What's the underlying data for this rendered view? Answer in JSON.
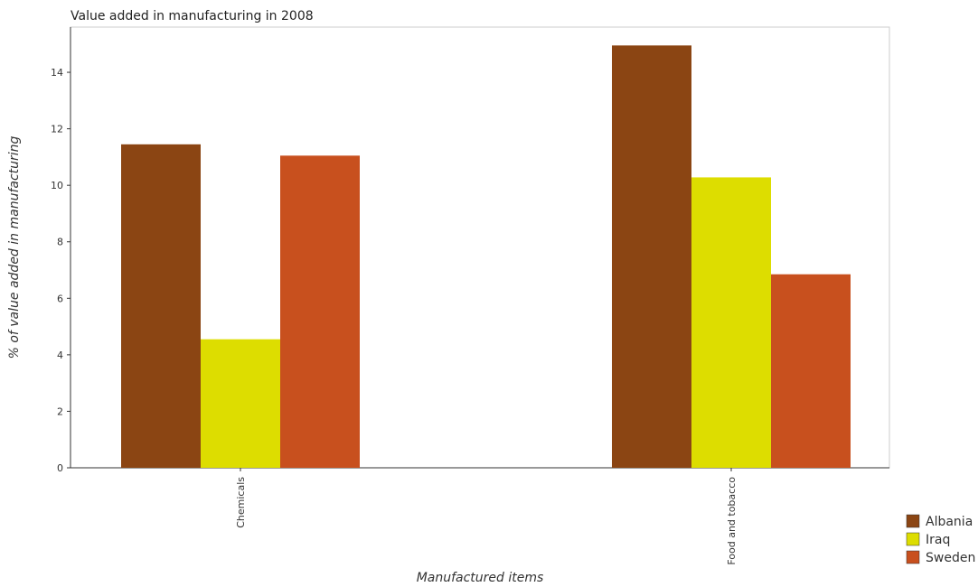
{
  "chart_data": {
    "type": "bar",
    "title": "Value added in manufacturing in 2008",
    "xlabel": "Manufactured items",
    "ylabel": "% of value added in manufacturing",
    "categories": [
      "Chemicals",
      "Food and tobacco"
    ],
    "series": [
      {
        "name": "Albania",
        "color": "#8B4513",
        "values": [
          11.45,
          14.95
        ]
      },
      {
        "name": "Iraq",
        "color": "#DDDD00",
        "values": [
          4.55,
          10.28
        ]
      },
      {
        "name": "Sweden",
        "color": "#C8501E",
        "values": [
          11.05,
          6.85
        ]
      }
    ],
    "ylim": [
      0,
      15.6
    ],
    "yticks": [
      "0",
      "2",
      "4",
      "6",
      "8",
      "10",
      "12",
      "14"
    ],
    "grid": false,
    "legend_position": "bottom-right"
  }
}
